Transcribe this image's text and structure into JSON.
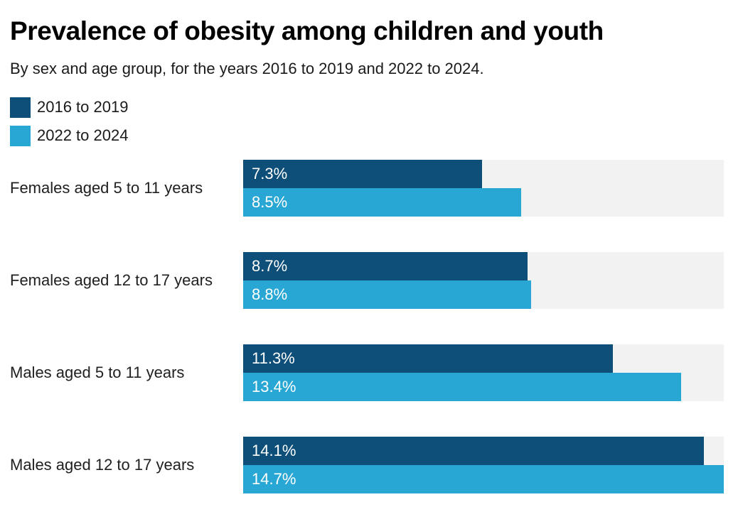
{
  "header": {
    "title": "Prevalence of obesity among children and youth",
    "subtitle": "By sex and age group, for the years 2016 to 2019 and 2022 to 2024."
  },
  "legend": {
    "items": [
      {
        "label": "2016 to 2019",
        "color": "#0D4F78"
      },
      {
        "label": "2022 to 2024",
        "color": "#29A7D4"
      }
    ]
  },
  "colors": {
    "series_dark": "#0D4F78",
    "series_light": "#29A7D4",
    "track": "#F2F2F2",
    "title_text": "#000000",
    "body_text": "#1a1a1a",
    "bar_label_text": "#ffffff"
  },
  "chart_data": {
    "type": "bar",
    "orientation": "horizontal",
    "title": "Prevalence of obesity among children and youth",
    "subtitle": "By sex and age group, for the years 2016 to 2019 and 2022 to 2024.",
    "categories": [
      "Females aged 5 to 11 years",
      "Females aged 12 to 17 years",
      "Males aged 5 to 11 years",
      "Males aged 12 to 17 years"
    ],
    "series": [
      {
        "name": "2016 to 2019",
        "color": "#0D4F78",
        "values": [
          7.3,
          8.7,
          11.3,
          14.1
        ]
      },
      {
        "name": "2022 to 2024",
        "color": "#29A7D4",
        "values": [
          8.5,
          8.8,
          13.4,
          14.7
        ]
      }
    ],
    "data_labels": [
      "7.3%",
      "8.5%",
      "8.7%",
      "8.8%",
      "11.3%",
      "13.4%",
      "14.1%",
      "14.7%"
    ],
    "value_suffix": "%",
    "xlim": [
      0,
      14.7
    ],
    "grid": false,
    "axes_shown": false,
    "legend_position": "top-left",
    "track_color": "#F2F2F2"
  }
}
